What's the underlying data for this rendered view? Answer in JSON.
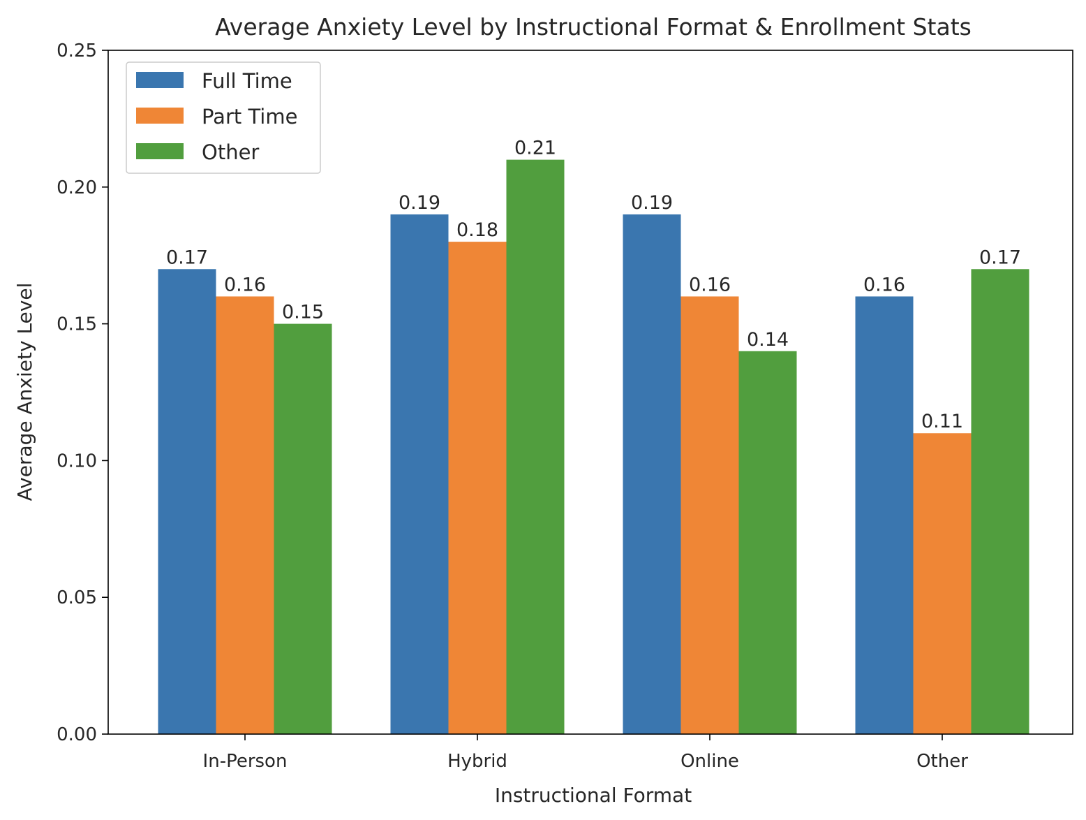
{
  "chart_data": {
    "type": "bar",
    "title": "Average Anxiety Level by Instructional Format & Enrollment Stats",
    "xlabel": "Instructional Format",
    "ylabel": "Average Anxiety Level",
    "categories": [
      "In-Person",
      "Hybrid",
      "Online",
      "Other"
    ],
    "series": [
      {
        "name": "Full Time",
        "color": "#3a76af",
        "values": [
          0.17,
          0.19,
          0.19,
          0.16
        ]
      },
      {
        "name": "Part Time",
        "color": "#ef8636",
        "values": [
          0.16,
          0.18,
          0.16,
          0.11
        ]
      },
      {
        "name": "Other",
        "color": "#519e3e",
        "values": [
          0.15,
          0.21,
          0.14,
          0.17
        ]
      }
    ],
    "ylim": [
      0,
      0.25
    ],
    "yticks": [
      "0.00",
      "0.05",
      "0.10",
      "0.15",
      "0.20",
      "0.25"
    ],
    "grid": false,
    "legend_position": "top-left"
  }
}
